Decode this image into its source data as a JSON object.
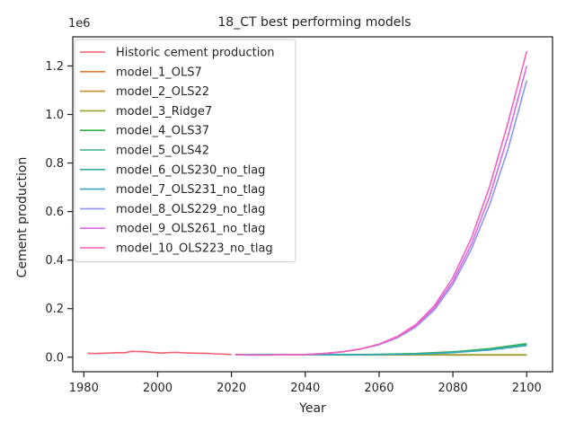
{
  "chart_data": {
    "type": "line",
    "title": "18_CT best performing models",
    "xlabel": "Year",
    "ylabel": "Cement production",
    "offset_label": "1e6",
    "xlim": [
      1977,
      2107
    ],
    "ylim": [
      -0.06,
      1.32
    ],
    "xticks": [
      1980,
      2000,
      2020,
      2040,
      2060,
      2080,
      2100
    ],
    "yticks": [
      0.0,
      0.2,
      0.4,
      0.6,
      0.8,
      1.0,
      1.2
    ],
    "ytick_labels": [
      "0.0",
      "0.2",
      "0.4",
      "0.6",
      "0.8",
      "1.0",
      "1.2"
    ],
    "grid": false,
    "legend_position": "top-left",
    "series": [
      {
        "name": "Historic cement production",
        "color": "#f0616f",
        "x": [
          1981,
          1983,
          1985,
          1987,
          1989,
          1991,
          1993,
          1995,
          1997,
          1999,
          2001,
          2003,
          2005,
          2007,
          2009,
          2011,
          2013,
          2015,
          2017,
          2019,
          2020
        ],
        "y": [
          0.016,
          0.015,
          0.016,
          0.017,
          0.019,
          0.018,
          0.024,
          0.023,
          0.022,
          0.019,
          0.017,
          0.019,
          0.02,
          0.018,
          0.017,
          0.016,
          0.016,
          0.014,
          0.013,
          0.012,
          0.011
        ]
      },
      {
        "name": "model_1_OLS7",
        "color": "#dc7f30",
        "x": [
          2021,
          2030,
          2040,
          2050,
          2060,
          2070,
          2080,
          2090,
          2100
        ],
        "y": [
          0.011,
          0.01,
          0.01,
          0.009,
          0.009,
          0.009,
          0.009,
          0.009,
          0.009
        ]
      },
      {
        "name": "model_2_OLS22",
        "color": "#b9922f",
        "x": [
          2021,
          2030,
          2040,
          2050,
          2060,
          2070,
          2080,
          2090,
          2100
        ],
        "y": [
          0.011,
          0.01,
          0.01,
          0.01,
          0.01,
          0.01,
          0.01,
          0.01,
          0.01
        ]
      },
      {
        "name": "model_3_Ridge7",
        "color": "#96a02e",
        "x": [
          2021,
          2030,
          2040,
          2050,
          2060,
          2070,
          2080,
          2090,
          2100
        ],
        "y": [
          0.011,
          0.01,
          0.01,
          0.01,
          0.01,
          0.01,
          0.009,
          0.009,
          0.009
        ]
      },
      {
        "name": "model_4_OLS37",
        "color": "#32b045",
        "x": [
          2021,
          2030,
          2040,
          2050,
          2060,
          2070,
          2080,
          2090,
          2100
        ],
        "y": [
          0.011,
          0.01,
          0.01,
          0.01,
          0.012,
          0.015,
          0.022,
          0.035,
          0.056
        ]
      },
      {
        "name": "model_5_OLS42",
        "color": "#33b085",
        "x": [
          2021,
          2030,
          2040,
          2050,
          2060,
          2070,
          2080,
          2090,
          2100
        ],
        "y": [
          0.011,
          0.01,
          0.01,
          0.01,
          0.011,
          0.014,
          0.02,
          0.032,
          0.052
        ]
      },
      {
        "name": "model_6_OLS230_no_tlag",
        "color": "#35ac9c",
        "x": [
          2021,
          2030,
          2040,
          2050,
          2060,
          2070,
          2080,
          2090,
          2100
        ],
        "y": [
          0.011,
          0.01,
          0.01,
          0.01,
          0.011,
          0.013,
          0.019,
          0.03,
          0.049
        ]
      },
      {
        "name": "model_7_OLS231_no_tlag",
        "color": "#37a8b6",
        "x": [
          2021,
          2030,
          2040,
          2050,
          2060,
          2070,
          2080,
          2090,
          2100
        ],
        "y": [
          0.011,
          0.01,
          0.01,
          0.01,
          0.011,
          0.013,
          0.019,
          0.03,
          0.048
        ]
      },
      {
        "name": "model_8_OLS229_no_tlag",
        "color": "#8c96f2",
        "x": [
          2021,
          2025,
          2030,
          2035,
          2040,
          2045,
          2050,
          2055,
          2060,
          2065,
          2070,
          2075,
          2080,
          2085,
          2090,
          2095,
          2100
        ],
        "y": [
          0.01,
          0.009,
          0.009,
          0.01,
          0.011,
          0.015,
          0.022,
          0.033,
          0.051,
          0.08,
          0.125,
          0.195,
          0.3,
          0.445,
          0.63,
          0.86,
          1.14
        ]
      },
      {
        "name": "model_9_OLS261_no_tlag",
        "color": "#d96ae6",
        "x": [
          2021,
          2025,
          2030,
          2035,
          2040,
          2045,
          2050,
          2055,
          2060,
          2065,
          2070,
          2075,
          2080,
          2085,
          2090,
          2095,
          2100
        ],
        "y": [
          0.01,
          0.009,
          0.009,
          0.01,
          0.011,
          0.015,
          0.022,
          0.034,
          0.053,
          0.083,
          0.13,
          0.203,
          0.312,
          0.465,
          0.665,
          0.915,
          1.2
        ]
      },
      {
        "name": "model_10_OLS223_no_tlag",
        "color": "#f063bb",
        "x": [
          2021,
          2025,
          2030,
          2035,
          2040,
          2045,
          2050,
          2055,
          2060,
          2065,
          2070,
          2075,
          2080,
          2085,
          2090,
          2095,
          2100
        ],
        "y": [
          0.01,
          0.009,
          0.009,
          0.01,
          0.011,
          0.015,
          0.022,
          0.034,
          0.054,
          0.086,
          0.135,
          0.212,
          0.328,
          0.49,
          0.705,
          0.97,
          1.26
        ]
      }
    ]
  }
}
